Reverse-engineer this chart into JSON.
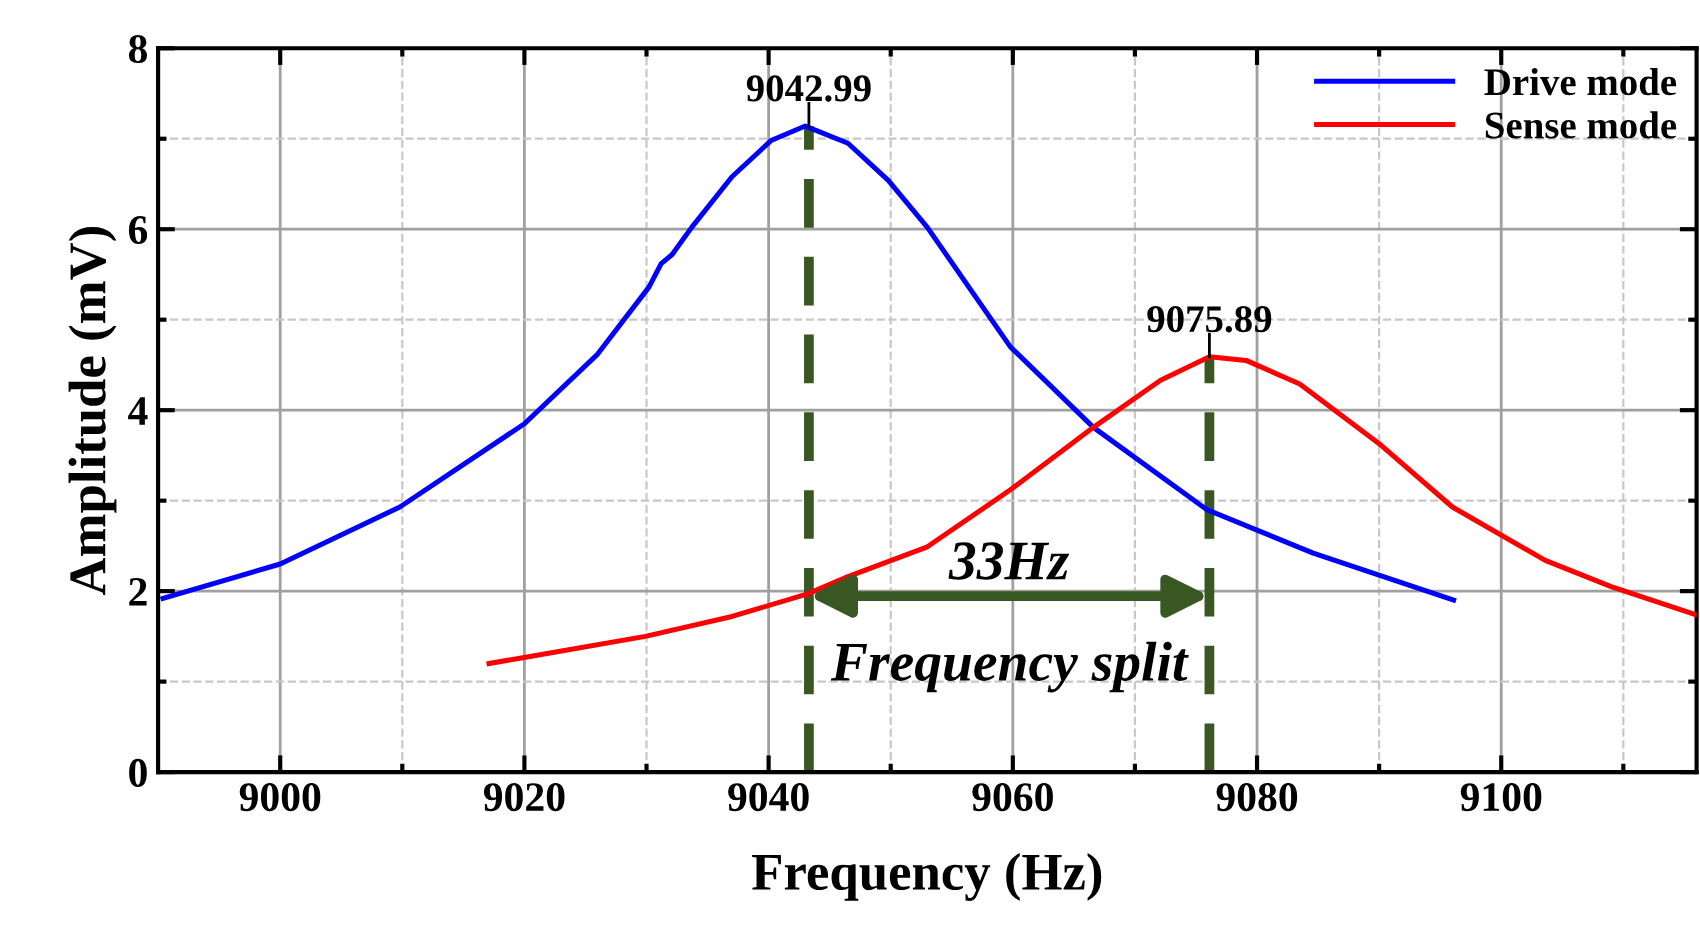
{
  "chart_data": {
    "type": "line",
    "xlabel": "Frequency (Hz)",
    "ylabel": "Amplitude (mV)",
    "xlim": [
      8990,
      9116
    ],
    "ylim": [
      0,
      8
    ],
    "xticks": [
      9000,
      9020,
      9040,
      9060,
      9080,
      9100
    ],
    "yticks": [
      0,
      2,
      4,
      6,
      8
    ],
    "grid": true,
    "legend": "top right",
    "marker": "none",
    "line_style": "solid",
    "series": [
      {
        "name": "Drive mode",
        "color": "#0000ff",
        "x": [
          8990.4,
          9000,
          9009.8,
          9020,
          9026,
          9030.2,
          9031.2,
          9032.1,
          9033.7,
          9037.0,
          9040.2,
          9043.0,
          9046.5,
          9049.8,
          9053.0,
          9059.8,
          9066.6,
          9075.9,
          9084.6,
          9096.1
        ],
        "values": [
          1.92,
          2.3,
          2.93,
          3.85,
          4.62,
          5.36,
          5.62,
          5.72,
          6.02,
          6.58,
          6.98,
          7.14,
          6.95,
          6.54,
          6.02,
          4.7,
          3.81,
          2.9,
          2.42,
          1.9
        ]
      },
      {
        "name": "Sense mode",
        "color": "#ff0000",
        "x": [
          9017.1,
          9020.1,
          9029.9,
          9037.0,
          9043.2,
          9046.5,
          9053.0,
          9059.8,
          9066.6,
          9072.1,
          9076.1,
          9079.1,
          9083.5,
          9090.0,
          9096.0,
          9103.6,
          9109.0,
          9115.9
        ],
        "values": [
          1.2,
          1.27,
          1.5,
          1.72,
          1.97,
          2.16,
          2.49,
          3.12,
          3.81,
          4.33,
          4.59,
          4.55,
          4.29,
          3.63,
          2.93,
          2.34,
          2.05,
          1.74
        ]
      },
      {
        "color": "#385723",
        "line_style": "dashed",
        "x": [
          9043.3,
          9043.3
        ],
        "values": [
          0,
          7.14
        ]
      },
      {
        "color": "#385723",
        "line_style": "dashed",
        "x": [
          9076.1,
          9076.1
        ],
        "values": [
          0,
          4.59
        ]
      }
    ],
    "annotations": [
      {
        "text": "9042.99",
        "x": 9043.3,
        "y": 7.14
      },
      {
        "text": "9075.89",
        "x": 9076.1,
        "y": 4.59
      },
      "33Hz",
      "Frequency split"
    ]
  }
}
